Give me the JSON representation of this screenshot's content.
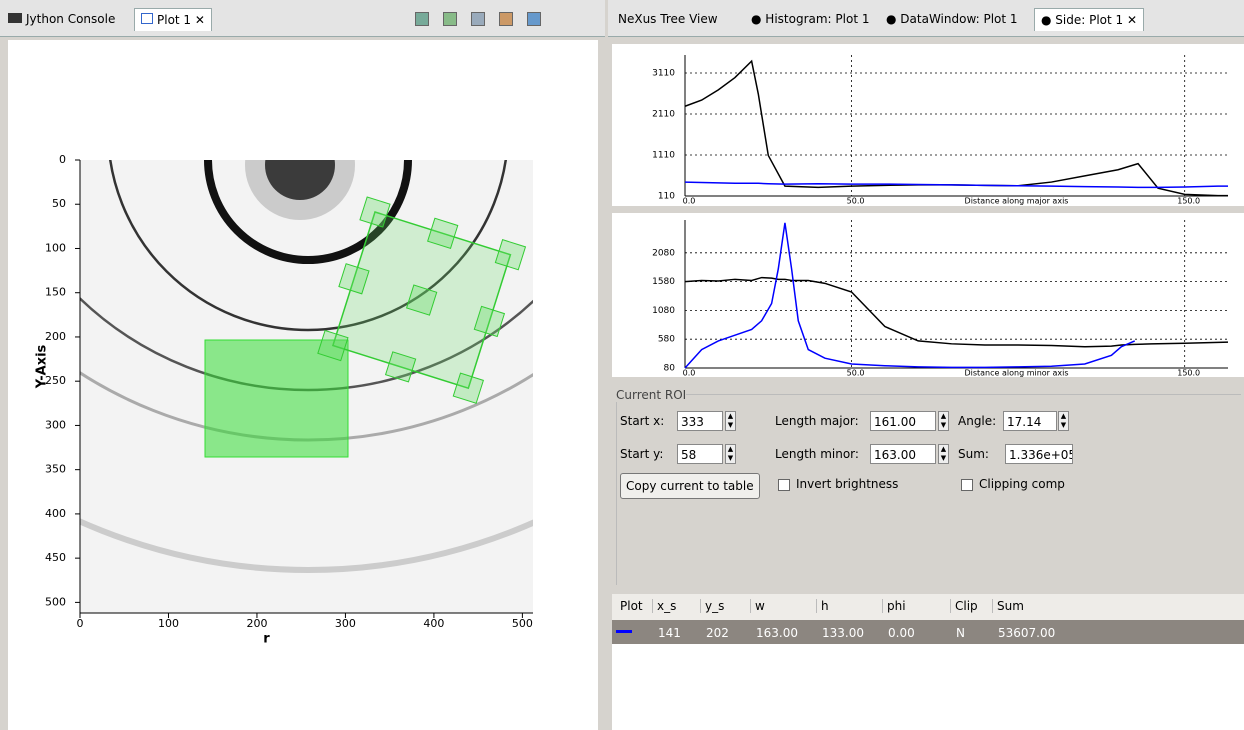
{
  "tabs_left": [
    "Jython Console",
    "Plot 1"
  ],
  "tabs_right": [
    "NeXus Tree View",
    "Histogram: Plot 1",
    "DataWindow: Plot 1",
    "Side: Plot 1"
  ],
  "chart_data": [
    {
      "type": "image",
      "ylabel": "Y-Axis",
      "xlabel": "r",
      "xlim": [
        0,
        512
      ],
      "ylim": [
        0,
        512
      ],
      "xticks": [
        0,
        100,
        200,
        300,
        400,
        500
      ],
      "yticks": [
        0,
        50,
        100,
        150,
        200,
        250,
        300,
        350,
        400,
        450,
        500
      ]
    },
    {
      "type": "line",
      "xlabel": "Distance along major axis",
      "grid": true,
      "x": [
        0,
        5,
        10,
        15,
        20,
        22,
        25,
        30,
        40,
        50,
        60,
        70,
        80,
        90,
        100,
        110,
        120,
        130,
        136,
        142,
        150,
        160,
        163
      ],
      "series": [
        {
          "color": "#000000",
          "values": [
            2300,
            2450,
            2700,
            3000,
            3400,
            2600,
            1100,
            350,
            320,
            350,
            370,
            380,
            380,
            370,
            360,
            450,
            600,
            750,
            900,
            300,
            150,
            120,
            120
          ]
        },
        {
          "color": "#0000ff",
          "values": [
            450,
            440,
            430,
            420,
            420,
            420,
            410,
            400,
            410,
            400,
            400,
            390,
            380,
            370,
            360,
            350,
            340,
            330,
            320,
            320,
            330,
            350,
            350
          ]
        }
      ],
      "xlim": [
        0,
        163
      ],
      "ylim": [
        110,
        3550
      ],
      "xticks": [
        {
          "value": 0,
          "label": "0.0"
        },
        {
          "value": 50,
          "label": "50.0"
        },
        {
          "value": 150,
          "label": "150.0"
        }
      ],
      "yticks": [
        110,
        1110,
        2110,
        3110
      ]
    },
    {
      "type": "line",
      "xlabel": "Distance along minor axis",
      "grid": true,
      "x": [
        0,
        5,
        10,
        15,
        20,
        23,
        26,
        28,
        30,
        32,
        34,
        37,
        42,
        50,
        60,
        70,
        80,
        90,
        100,
        110,
        120,
        128,
        131,
        135,
        140,
        150,
        163
      ],
      "series": [
        {
          "color": "#000000",
          "values": [
            1580,
            1600,
            1590,
            1620,
            1600,
            1650,
            1640,
            1620,
            1620,
            1600,
            1600,
            1600,
            1550,
            1400,
            800,
            550,
            500,
            480,
            480,
            470,
            450,
            460,
            480,
            490,
            500,
            510,
            530
          ]
        },
        {
          "color": "#0000ff",
          "values": [
            80,
            400,
            550,
            650,
            750,
            900,
            1200,
            1800,
            2600,
            1800,
            900,
            400,
            250,
            150,
            120,
            100,
            90,
            90,
            100,
            110,
            150,
            300,
            450,
            550,
            null,
            null,
            null
          ]
        }
      ],
      "xlim": [
        0,
        163
      ],
      "ylim": [
        80,
        2650
      ],
      "xticks": [
        {
          "value": 0,
          "label": "0.0"
        },
        {
          "value": 50,
          "label": "50.0"
        },
        {
          "value": 150,
          "label": "150.0"
        }
      ],
      "yticks": [
        80,
        580,
        1080,
        1580,
        2080
      ]
    }
  ],
  "roi": {
    "title": "Current ROI",
    "fields": [
      {
        "label": "Start x:",
        "value": "333"
      },
      {
        "label": "Length major:",
        "value": "161.00"
      },
      {
        "label": "Angle:",
        "value": "17.14"
      },
      {
        "label": "Start y:",
        "value": "58"
      },
      {
        "label": "Length minor:",
        "value": "163.00"
      },
      {
        "label": "Sum:",
        "value": "1.336e+05"
      }
    ],
    "button": "Copy current to table",
    "checkboxes": [
      "Invert brightness",
      "Clipping comp"
    ]
  },
  "table": {
    "headers": [
      "Plot",
      "x_s",
      "y_s",
      "w",
      "h",
      "phi",
      "Clip",
      "Sum"
    ],
    "rows": [
      [
        "141",
        "202",
        "163.00",
        "133.00",
        "0.00",
        "N",
        "53607.00"
      ]
    ]
  }
}
